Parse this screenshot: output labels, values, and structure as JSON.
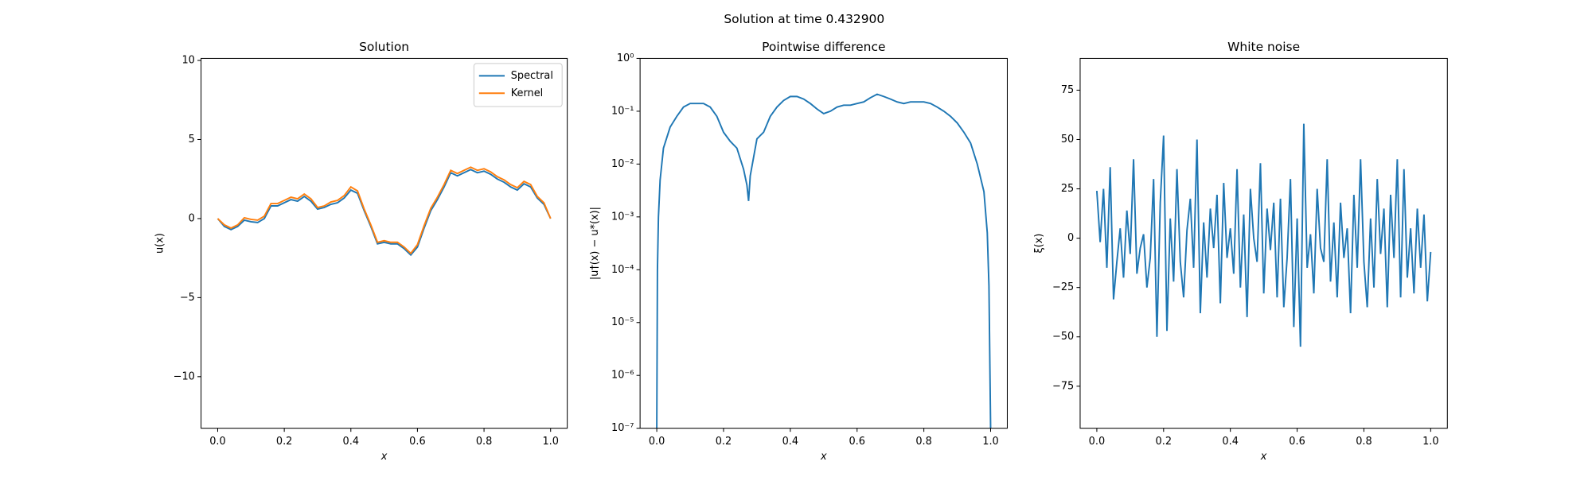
{
  "title": "Solution at time 0.432900",
  "chart_data": [
    {
      "type": "line",
      "title": "Solution",
      "xlabel": "x",
      "ylabel": "u(x)",
      "legend": "upper right",
      "xlim": [
        -0.05,
        1.05
      ],
      "ylim": [
        -13.26,
        10.13
      ],
      "xticks": [
        {
          "value": 0,
          "label": "0.0"
        },
        {
          "value": 0.2,
          "label": "0.2"
        },
        {
          "value": 0.4,
          "label": "0.4"
        },
        {
          "value": 0.6,
          "label": "0.6"
        },
        {
          "value": 0.8,
          "label": "0.8"
        },
        {
          "value": 1,
          "label": "1.0"
        }
      ],
      "yticks": [
        {
          "value": -10,
          "label": "−10"
        },
        {
          "value": -5,
          "label": "−5"
        },
        0,
        5,
        10
      ],
      "x": [
        0,
        0.02,
        0.04,
        0.06,
        0.08,
        0.1,
        0.12,
        0.14,
        0.16,
        0.18,
        0.2,
        0.22,
        0.24,
        0.26,
        0.28,
        0.3,
        0.32,
        0.34,
        0.36,
        0.38,
        0.4,
        0.42,
        0.44,
        0.46,
        0.48,
        0.5,
        0.52,
        0.54,
        0.56,
        0.58,
        0.6,
        0.62,
        0.64,
        0.66,
        0.68,
        0.7,
        0.72,
        0.74,
        0.76,
        0.78,
        0.8,
        0.82,
        0.84,
        0.86,
        0.88,
        0.9,
        0.92,
        0.94,
        0.96,
        0.98,
        1
      ],
      "series": [
        {
          "name": "Spectral",
          "color": "#1f77b4",
          "values": [
            0,
            -0.5,
            -0.7,
            -0.5,
            -0.1,
            -0.2,
            -0.25,
            0,
            0.8,
            0.8,
            1.0,
            1.2,
            1.1,
            1.4,
            1.1,
            0.6,
            0.7,
            0.9,
            1.0,
            1.3,
            1.8,
            1.6,
            0.5,
            -0.5,
            -1.6,
            -1.5,
            -1.6,
            -1.6,
            -1.9,
            -2.3,
            -1.8,
            -0.6,
            0.5,
            1.2,
            2.0,
            2.9,
            2.7,
            2.9,
            3.1,
            2.9,
            3.0,
            2.8,
            2.5,
            2.3,
            2.0,
            1.8,
            2.2,
            2.0,
            1.3,
            0.9,
            0
          ]
        },
        {
          "name": "Kernel",
          "color": "#ff7f0e",
          "values": [
            0,
            -0.4,
            -0.6,
            -0.4,
            0.05,
            -0.05,
            -0.1,
            0.15,
            0.95,
            0.95,
            1.15,
            1.35,
            1.25,
            1.55,
            1.25,
            0.7,
            0.8,
            1.05,
            1.15,
            1.45,
            2.0,
            1.75,
            0.6,
            -0.4,
            -1.5,
            -1.4,
            -1.5,
            -1.5,
            -1.8,
            -2.2,
            -1.65,
            -0.45,
            0.65,
            1.35,
            2.15,
            3.05,
            2.85,
            3.05,
            3.25,
            3.05,
            3.15,
            2.95,
            2.65,
            2.45,
            2.15,
            1.95,
            2.35,
            2.15,
            1.4,
            1.0,
            0
          ]
        }
      ]
    },
    {
      "type": "line",
      "title": "Pointwise difference",
      "xlabel": "x",
      "ylabel": "|u†(x) − u*(x)|",
      "log_y": true,
      "xlim": [
        -0.05,
        1.05
      ],
      "ylim": [
        1e-07,
        1
      ],
      "xticks": [
        {
          "value": 0,
          "label": "0.0"
        },
        {
          "value": 0.2,
          "label": "0.2"
        },
        {
          "value": 0.4,
          "label": "0.4"
        },
        {
          "value": 0.6,
          "label": "0.6"
        },
        {
          "value": 0.8,
          "label": "0.8"
        },
        {
          "value": 1,
          "label": "1.0"
        }
      ],
      "yticks": [
        {
          "value": 1e-07,
          "label": "10⁻⁷"
        },
        {
          "value": 1e-06,
          "label": "10⁻⁶"
        },
        {
          "value": 1e-05,
          "label": "10⁻⁵"
        },
        {
          "value": 0.0001,
          "label": "10⁻⁴"
        },
        {
          "value": 0.001,
          "label": "10⁻³"
        },
        {
          "value": 0.01,
          "label": "10⁻²"
        },
        {
          "value": 0.1,
          "label": "10⁻¹"
        },
        {
          "value": 1,
          "label": "10⁰"
        }
      ],
      "x": [
        0,
        0.002,
        0.005,
        0.01,
        0.02,
        0.04,
        0.06,
        0.08,
        0.1,
        0.12,
        0.14,
        0.16,
        0.18,
        0.2,
        0.22,
        0.24,
        0.26,
        0.27,
        0.275,
        0.28,
        0.3,
        0.32,
        0.34,
        0.36,
        0.38,
        0.4,
        0.42,
        0.44,
        0.46,
        0.48,
        0.5,
        0.52,
        0.54,
        0.56,
        0.58,
        0.6,
        0.62,
        0.64,
        0.66,
        0.68,
        0.7,
        0.72,
        0.74,
        0.76,
        0.78,
        0.8,
        0.82,
        0.84,
        0.86,
        0.88,
        0.9,
        0.92,
        0.94,
        0.96,
        0.98,
        0.99,
        0.995,
        1
      ],
      "series": [
        {
          "color": "#1f77b4",
          "values": [
            1e-07,
            0.0001,
            0.001,
            0.005,
            0.02,
            0.05,
            0.08,
            0.12,
            0.14,
            0.14,
            0.14,
            0.12,
            0.08,
            0.04,
            0.027,
            0.02,
            0.008,
            0.004,
            0.002,
            0.006,
            0.03,
            0.04,
            0.08,
            0.12,
            0.16,
            0.19,
            0.19,
            0.17,
            0.14,
            0.11,
            0.09,
            0.1,
            0.12,
            0.13,
            0.13,
            0.14,
            0.15,
            0.18,
            0.21,
            0.19,
            0.17,
            0.15,
            0.14,
            0.15,
            0.15,
            0.15,
            0.14,
            0.12,
            0.1,
            0.08,
            0.06,
            0.04,
            0.025,
            0.01,
            0.003,
            0.0005,
            5e-05,
            1e-07
          ]
        }
      ]
    },
    {
      "type": "line",
      "title": "White noise",
      "xlabel": "x",
      "ylabel": "ξ(x)",
      "xlim": [
        -0.05,
        1.05
      ],
      "ylim": [
        -96.3,
        91.1
      ],
      "xticks": [
        {
          "value": 0,
          "label": "0.0"
        },
        {
          "value": 0.2,
          "label": "0.2"
        },
        {
          "value": 0.4,
          "label": "0.4"
        },
        {
          "value": 0.6,
          "label": "0.6"
        },
        {
          "value": 0.8,
          "label": "0.8"
        },
        {
          "value": 1,
          "label": "1.0"
        }
      ],
      "yticks": [
        {
          "value": -75,
          "label": "−75"
        },
        {
          "value": -50,
          "label": "−50"
        },
        {
          "value": -25,
          "label": "−25"
        },
        0,
        25,
        50,
        75
      ],
      "x": [
        0,
        0.01,
        0.02,
        0.03,
        0.04,
        0.05,
        0.06,
        0.07,
        0.08,
        0.09,
        0.1,
        0.11,
        0.12,
        0.13,
        0.14,
        0.15,
        0.16,
        0.17,
        0.18,
        0.19,
        0.2,
        0.21,
        0.22,
        0.23,
        0.24,
        0.25,
        0.26,
        0.27,
        0.28,
        0.29,
        0.3,
        0.31,
        0.32,
        0.33,
        0.34,
        0.35,
        0.36,
        0.37,
        0.38,
        0.39,
        0.4,
        0.41,
        0.42,
        0.43,
        0.44,
        0.45,
        0.46,
        0.47,
        0.48,
        0.49,
        0.5,
        0.51,
        0.52,
        0.53,
        0.54,
        0.55,
        0.56,
        0.57,
        0.58,
        0.59,
        0.6,
        0.61,
        0.62,
        0.63,
        0.64,
        0.65,
        0.66,
        0.67,
        0.68,
        0.69,
        0.7,
        0.71,
        0.72,
        0.73,
        0.74,
        0.75,
        0.76,
        0.77,
        0.78,
        0.79,
        0.8,
        0.81,
        0.82,
        0.83,
        0.84,
        0.85,
        0.86,
        0.87,
        0.88,
        0.89,
        0.9,
        0.91,
        0.92,
        0.93,
        0.94,
        0.95,
        0.96,
        0.97,
        0.98,
        0.99,
        1
      ],
      "series": [
        {
          "color": "#1f77b4",
          "values": [
            24,
            -2,
            25,
            -15,
            36,
            -31,
            -12,
            5,
            -20,
            14,
            -8,
            40,
            -18,
            -5,
            2,
            -25,
            -10,
            30,
            -50,
            18,
            52,
            -47,
            10,
            -22,
            35,
            -12,
            -30,
            4,
            20,
            -15,
            50,
            -38,
            8,
            -20,
            15,
            -5,
            22,
            -33,
            28,
            -10,
            5,
            -18,
            35,
            -25,
            12,
            -40,
            25,
            0,
            -12,
            38,
            -28,
            15,
            -6,
            18,
            -30,
            20,
            -35,
            -10,
            30,
            -45,
            10,
            -55,
            58,
            -15,
            2,
            -28,
            25,
            -5,
            -12,
            40,
            -22,
            8,
            -30,
            18,
            -10,
            5,
            -38,
            22,
            -15,
            40,
            -12,
            -35,
            10,
            -25,
            30,
            -8,
            15,
            -35,
            22,
            -10,
            40,
            -30,
            35,
            -20,
            5,
            -28,
            15,
            -15,
            12,
            -32,
            -7
          ]
        }
      ]
    }
  ]
}
